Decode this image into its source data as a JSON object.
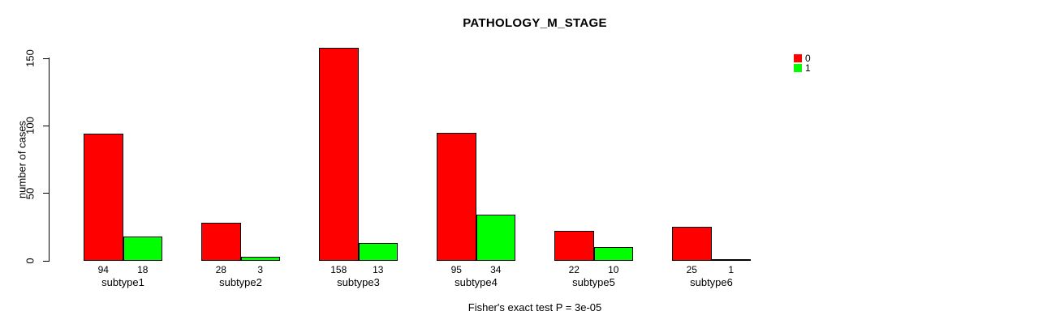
{
  "header": {
    "title": "PATHOLOGY_M_STAGE"
  },
  "axes": {
    "ylabel": "number of cases"
  },
  "legend": {
    "items": [
      {
        "label": "0",
        "color": "#ff0000"
      },
      {
        "label": "1",
        "color": "#00ff00"
      }
    ]
  },
  "footer": {
    "caption": "Fisher's exact test P = 3e-05"
  },
  "chart_data": {
    "type": "bar",
    "title": "PATHOLOGY_M_STAGE",
    "categories": [
      "subtype1",
      "subtype2",
      "subtype3",
      "subtype4",
      "subtype5",
      "subtype6"
    ],
    "series": [
      {
        "name": "0",
        "color": "#ff0000",
        "values": [
          94,
          28,
          158,
          95,
          22,
          25
        ]
      },
      {
        "name": "1",
        "color": "#00ff00",
        "values": [
          18,
          3,
          13,
          34,
          10,
          1
        ]
      }
    ],
    "xlabel": "",
    "ylabel": "number of cases",
    "yticks": [
      0,
      50,
      100,
      150
    ],
    "ylim": [
      0,
      158
    ],
    "bar_value_labels": true,
    "bar_border_color": "#000000",
    "legend_position": "top-right",
    "grid": false,
    "annotation": "Fisher's exact test P = 3e-05"
  }
}
